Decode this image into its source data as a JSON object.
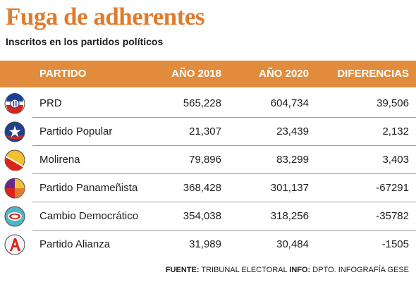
{
  "title": "Fuga de adherentes",
  "subtitle": "Inscritos en los partidos políticos",
  "colors": {
    "title": "#e07b2c",
    "header_bg": "#e08c3c",
    "header_text": "#ffffff",
    "text": "#1d1d1b"
  },
  "chart_data": {
    "type": "table",
    "columns": [
      "PARTIDO",
      "AÑO 2018",
      "AÑO 2020",
      "DIFERENCIAS"
    ],
    "rows": [
      {
        "logo": "prd-logo-icon",
        "party": "PRD",
        "y2018": "565,228",
        "y2020": "604,734",
        "diff": "39,506"
      },
      {
        "logo": "partido-popular-logo-icon",
        "party": "Partido Popular",
        "y2018": "21,307",
        "y2020": "23,439",
        "diff": "2,132"
      },
      {
        "logo": "molirena-logo-icon",
        "party": "Molirena",
        "y2018": "79,896",
        "y2020": "83,299",
        "diff": "3,403"
      },
      {
        "logo": "panamenista-logo-icon",
        "party": "Partido Panameñista",
        "y2018": "368,428",
        "y2020": "301,137",
        "diff": "-67291"
      },
      {
        "logo": "cambio-democratico-logo-icon",
        "party": "Cambio Democrático",
        "y2018": "354,038",
        "y2020": "318,256",
        "diff": "-35782"
      },
      {
        "logo": "alianza-logo-icon",
        "party": "Partido Alianza",
        "y2018": "31,989",
        "y2020": "30,484",
        "diff": "-1505"
      }
    ]
  },
  "footer": {
    "fuente_label": "FUENTE:",
    "fuente_value": "TRIBUNAL ELECTORAL",
    "info_label": "INFO:",
    "info_value": "DPTO. INFOGRAFÍA GESE"
  }
}
